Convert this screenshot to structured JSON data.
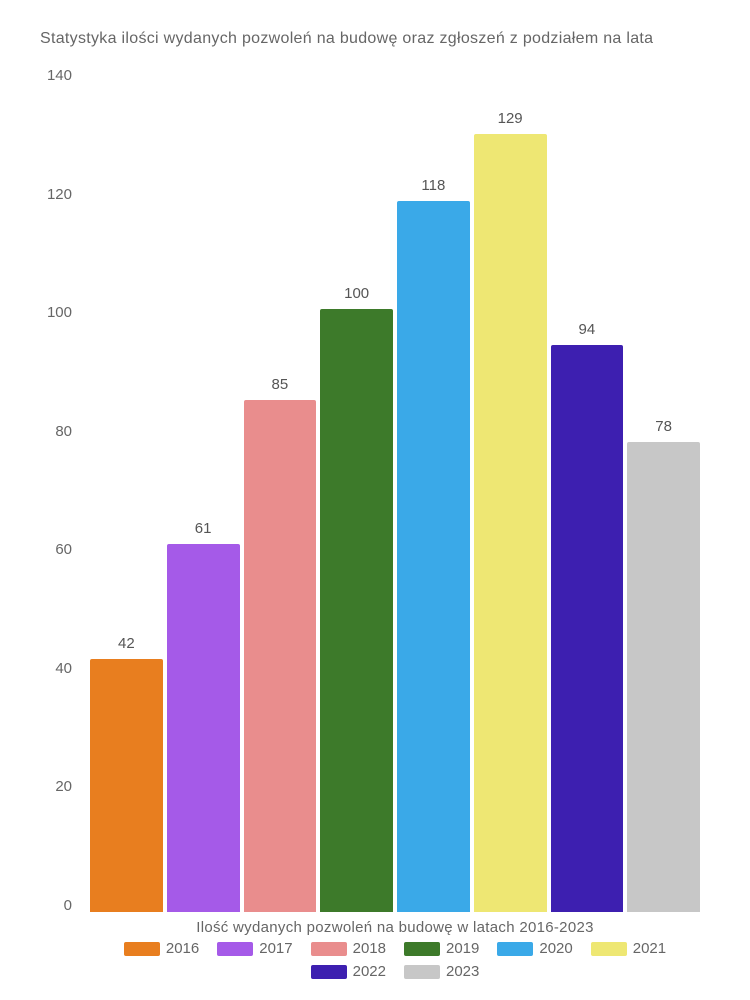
{
  "chart": {
    "type": "bar",
    "title": "Statystyka ilości wydanych pozwoleń na budowę oraz zgłoszeń z podziałem na lata",
    "title_fontsize": 16,
    "title_color": "#666666",
    "x_label": "Ilość wydanych pozwoleń na budowę w latach 2016-2023",
    "x_label_fontsize": 15,
    "ylim": [
      0,
      140
    ],
    "ytick_step": 20,
    "yticks": [
      "140",
      "120",
      "100",
      "80",
      "60",
      "40",
      "20",
      "0"
    ],
    "background_color": "#ffffff",
    "text_color": "#666666",
    "value_label_bg": "#ffffff",
    "value_label_fontsize": 15,
    "bar_width": 0.95,
    "font_family": "sans-serif",
    "bars": [
      {
        "year": "2016",
        "value": 42,
        "color": "#e87e1f"
      },
      {
        "year": "2017",
        "value": 61,
        "color": "#a55ae8"
      },
      {
        "year": "2018",
        "value": 85,
        "color": "#e98d8d"
      },
      {
        "year": "2019",
        "value": 100,
        "color": "#3d7a2a"
      },
      {
        "year": "2020",
        "value": 118,
        "color": "#3aa9e8"
      },
      {
        "year": "2021",
        "value": 129,
        "color": "#eee773"
      },
      {
        "year": "2022",
        "value": 94,
        "color": "#3d1fb0"
      },
      {
        "year": "2023",
        "value": 78,
        "color": "#c7c7c7"
      }
    ]
  }
}
